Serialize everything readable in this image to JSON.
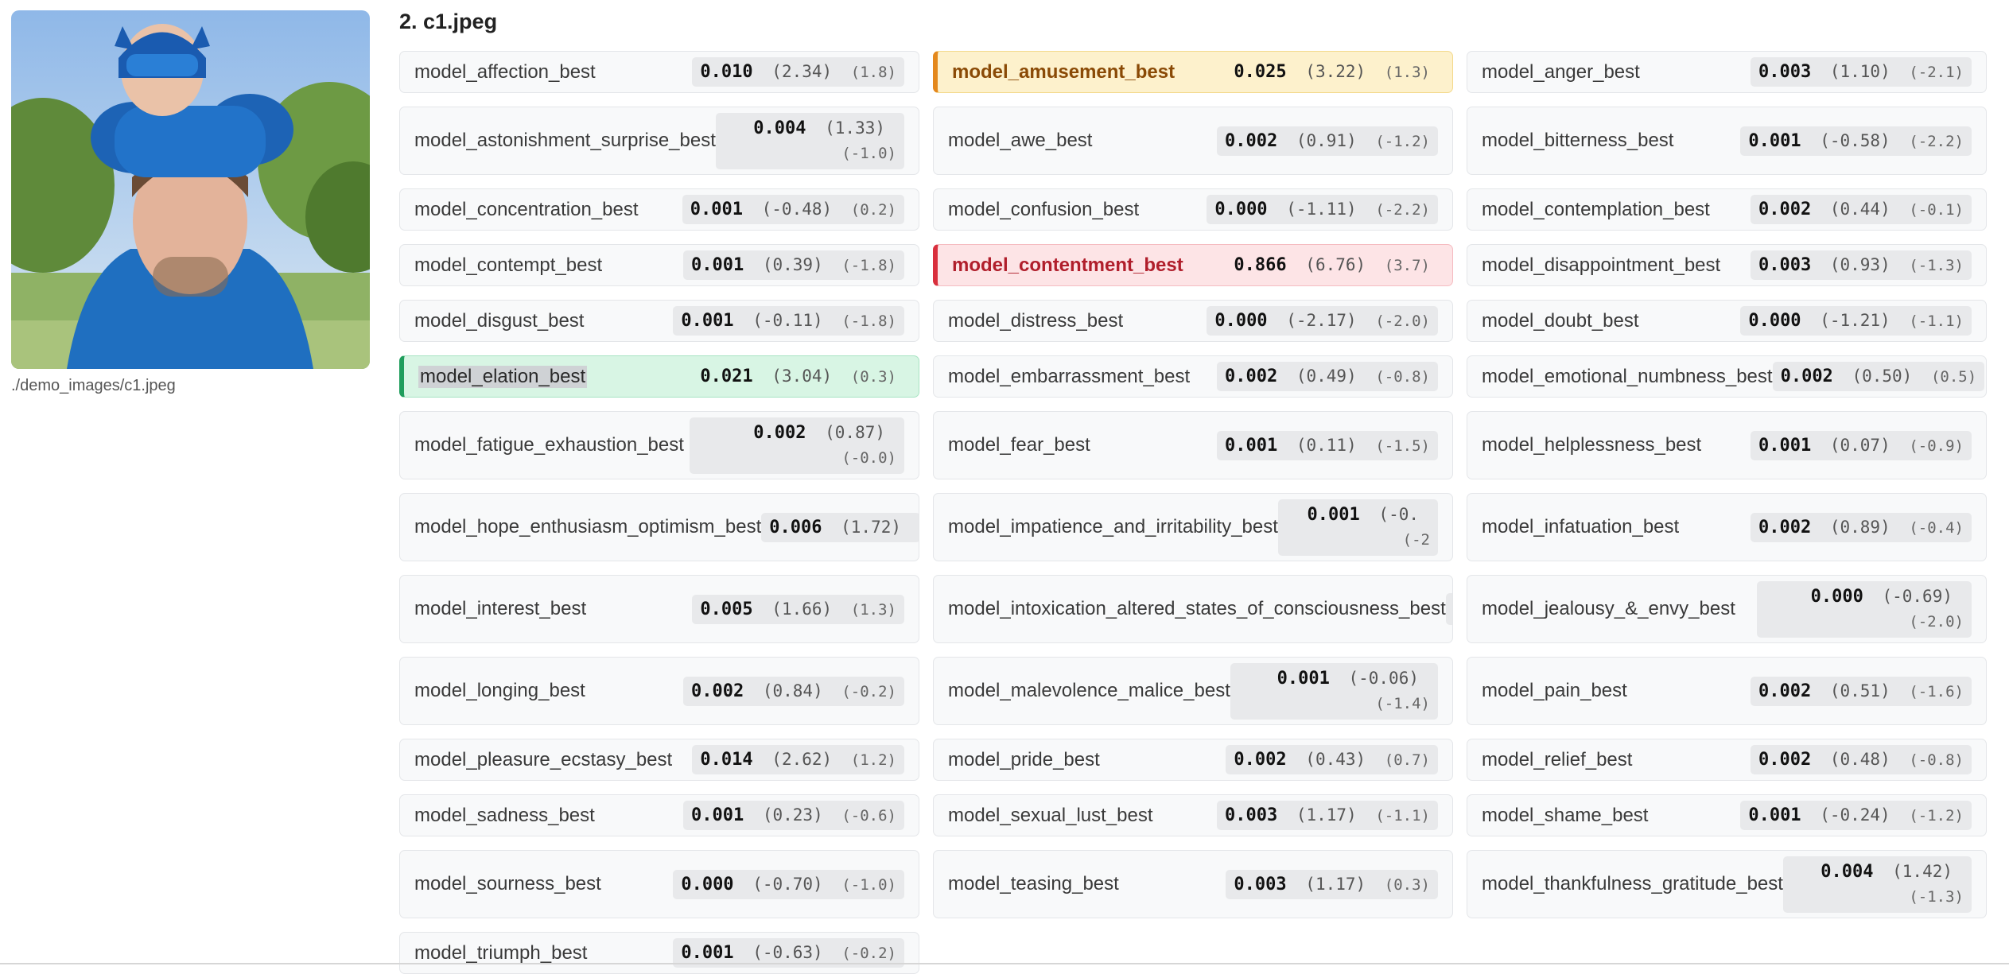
{
  "section_title": "2. c1.jpeg",
  "image": {
    "caption": "./demo_images/c1.jpeg"
  },
  "cards": [
    {
      "name": "model_affection_best",
      "score": "0.010",
      "z1": "(2.34)",
      "z2": "(1.8)"
    },
    {
      "name": "model_amusement_best",
      "score": "0.025",
      "z1": "(3.22)",
      "z2": "(1.3)",
      "highlight": "amusement"
    },
    {
      "name": "model_anger_best",
      "score": "0.003",
      "z1": "(1.10)",
      "z2": "(-2.1)"
    },
    {
      "name": "model_astonishment_surprise_best",
      "score": "0.004",
      "z1": "(1.33)",
      "z2": "(-1.0)",
      "wrap": true
    },
    {
      "name": "model_awe_best",
      "score": "0.002",
      "z1": "(0.91)",
      "z2": "(-1.2)"
    },
    {
      "name": "model_bitterness_best",
      "score": "0.001",
      "z1": "(-0.58)",
      "z2": "(-2.2)"
    },
    {
      "name": "model_concentration_best",
      "score": "0.001",
      "z1": "(-0.48)",
      "z2": "(0.2)"
    },
    {
      "name": "model_confusion_best",
      "score": "0.000",
      "z1": "(-1.11)",
      "z2": "(-2.2)"
    },
    {
      "name": "model_contemplation_best",
      "score": "0.002",
      "z1": "(0.44)",
      "z2": "(-0.1)"
    },
    {
      "name": "model_contempt_best",
      "score": "0.001",
      "z1": "(0.39)",
      "z2": "(-1.8)"
    },
    {
      "name": "model_contentment_best",
      "score": "0.866",
      "z1": "(6.76)",
      "z2": "(3.7)",
      "highlight": "contentment"
    },
    {
      "name": "model_disappointment_best",
      "score": "0.003",
      "z1": "(0.93)",
      "z2": "(-1.3)"
    },
    {
      "name": "model_disgust_best",
      "score": "0.001",
      "z1": "(-0.11)",
      "z2": "(-1.8)"
    },
    {
      "name": "model_distress_best",
      "score": "0.000",
      "z1": "(-2.17)",
      "z2": "(-2.0)"
    },
    {
      "name": "model_doubt_best",
      "score": "0.000",
      "z1": "(-1.21)",
      "z2": "(-1.1)"
    },
    {
      "name": "model_elation_best",
      "score": "0.021",
      "z1": "(3.04)",
      "z2": "(0.3)",
      "highlight": "elation"
    },
    {
      "name": "model_embarrassment_best",
      "score": "0.002",
      "z1": "(0.49)",
      "z2": "(-0.8)"
    },
    {
      "name": "model_emotional_numbness_best",
      "score": "0.002",
      "z1": "(0.50)",
      "z2": "(0.5)"
    },
    {
      "name": "model_fatigue_exhaustion_best",
      "score": "0.002",
      "z1": "(0.87)",
      "z2": "(-0.0)",
      "wrap": true
    },
    {
      "name": "model_fear_best",
      "score": "0.001",
      "z1": "(0.11)",
      "z2": "(-1.5)"
    },
    {
      "name": "model_helplessness_best",
      "score": "0.001",
      "z1": "(0.07)",
      "z2": "(-0.9)"
    },
    {
      "name": "model_hope_enthusiasm_optimism_best",
      "score": "0.006",
      "z1": "(1.72)",
      "z2": ""
    },
    {
      "name": "model_impatience_and_irritability_best",
      "score": "0.001",
      "z1": "(-0.",
      "z2": "(-2",
      "wrap": true
    },
    {
      "name": "model_infatuation_best",
      "score": "0.002",
      "z1": "(0.89)",
      "z2": "(-0.4)"
    },
    {
      "name": "model_interest_best",
      "score": "0.005",
      "z1": "(1.66)",
      "z2": "(1.3)"
    },
    {
      "name": "model_intoxication_altered_states_of_consciousness_best",
      "score": "",
      "z1": "",
      "z2": "",
      "wrap": true
    },
    {
      "name": "model_jealousy_&_envy_best",
      "score": "0.000",
      "z1": "(-0.69)",
      "z2": "(-2.0)",
      "wrap": true
    },
    {
      "name": "model_longing_best",
      "score": "0.002",
      "z1": "(0.84)",
      "z2": "(-0.2)"
    },
    {
      "name": "model_malevolence_malice_best",
      "score": "0.001",
      "z1": "(-0.06)",
      "z2": "(-1.4)",
      "wrap": true
    },
    {
      "name": "model_pain_best",
      "score": "0.002",
      "z1": "(0.51)",
      "z2": "(-1.6)"
    },
    {
      "name": "model_pleasure_ecstasy_best",
      "score": "0.014",
      "z1": "(2.62)",
      "z2": "(1.2)"
    },
    {
      "name": "model_pride_best",
      "score": "0.002",
      "z1": "(0.43)",
      "z2": "(0.7)"
    },
    {
      "name": "model_relief_best",
      "score": "0.002",
      "z1": "(0.48)",
      "z2": "(-0.8)"
    },
    {
      "name": "model_sadness_best",
      "score": "0.001",
      "z1": "(0.23)",
      "z2": "(-0.6)"
    },
    {
      "name": "model_sexual_lust_best",
      "score": "0.003",
      "z1": "(1.17)",
      "z2": "(-1.1)"
    },
    {
      "name": "model_shame_best",
      "score": "0.001",
      "z1": "(-0.24)",
      "z2": "(-1.2)"
    },
    {
      "name": "model_sourness_best",
      "score": "0.000",
      "z1": "(-0.70)",
      "z2": "(-1.0)"
    },
    {
      "name": "model_teasing_best",
      "score": "0.003",
      "z1": "(1.17)",
      "z2": "(0.3)"
    },
    {
      "name": "model_thankfulness_gratitude_best",
      "score": "0.004",
      "z1": "(1.42)",
      "z2": "(-1.3)",
      "wrap": true
    },
    {
      "name": "model_triumph_best",
      "score": "0.001",
      "z1": "(-0.63)",
      "z2": "(-0.2)"
    }
  ]
}
